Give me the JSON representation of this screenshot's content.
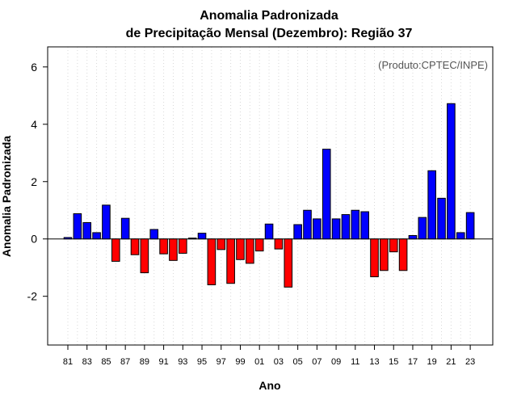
{
  "chart_data": {
    "type": "bar",
    "title_line1": "Anomalia Padronizada",
    "title_line2": "de Precipitação Mensal (Dezembro): Região 37",
    "xlabel": "Ano",
    "ylabel": "Anomalia Padronizada",
    "credit": "(Produto:CPTEC/INPE)",
    "ylim": [
      -3.7,
      6.7
    ],
    "yticks": [
      -2,
      0,
      2,
      4,
      6
    ],
    "grid": "vertical-dotted",
    "positive_color": "#0000ff",
    "negative_color": "#ff0000",
    "categories": [
      "81",
      "82",
      "83",
      "84",
      "85",
      "86",
      "87",
      "88",
      "89",
      "90",
      "91",
      "92",
      "93",
      "94",
      "95",
      "96",
      "97",
      "98",
      "99",
      "00",
      "01",
      "02",
      "03",
      "04",
      "05",
      "06",
      "07",
      "08",
      "09",
      "10",
      "11",
      "12",
      "13",
      "14",
      "15",
      "16",
      "17",
      "18",
      "19",
      "20",
      "21",
      "22",
      "23"
    ],
    "xtick_labels": [
      "81",
      "",
      "83",
      "",
      "85",
      "",
      "87",
      "",
      "89",
      "",
      "91",
      "",
      "93",
      "",
      "95",
      "",
      "97",
      "",
      "99",
      "",
      "01",
      "",
      "03",
      "",
      "05",
      "",
      "07",
      "",
      "09",
      "",
      "11",
      "",
      "13",
      "",
      "15",
      "",
      "17",
      "",
      "19",
      "",
      "21",
      "",
      "23"
    ],
    "values": [
      0.05,
      0.88,
      0.57,
      0.22,
      1.18,
      -0.78,
      0.72,
      -0.55,
      -1.18,
      0.33,
      -0.52,
      -0.75,
      -0.5,
      0.03,
      0.2,
      -1.6,
      -0.37,
      -1.55,
      -0.72,
      -0.85,
      -0.42,
      0.52,
      -0.35,
      -1.68,
      0.5,
      1.0,
      0.7,
      3.13,
      0.7,
      0.85,
      1.0,
      0.95,
      -1.32,
      -1.1,
      -0.45,
      -1.1,
      0.12,
      0.75,
      2.38,
      1.42,
      4.72,
      0.22,
      0.92
    ]
  }
}
